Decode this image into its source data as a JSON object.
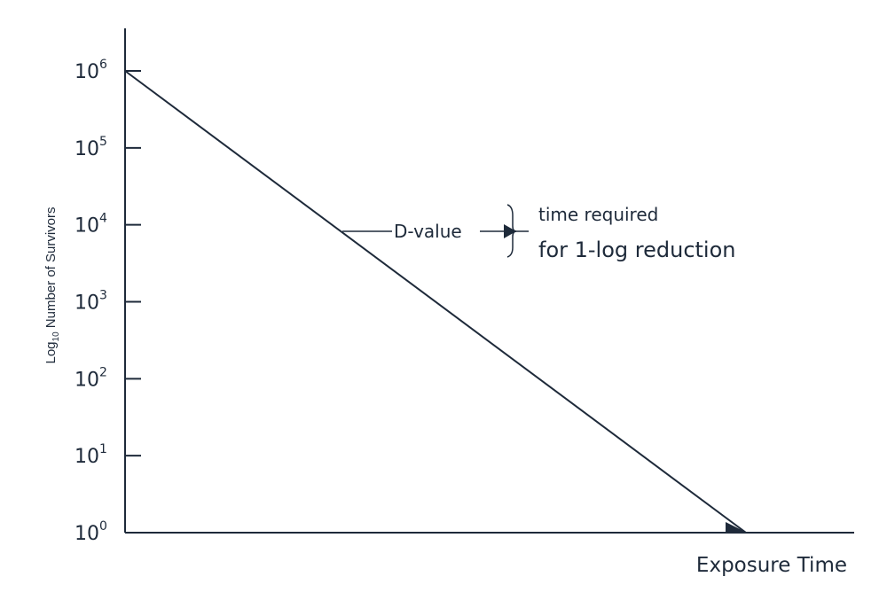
{
  "chart_data": {
    "type": "line",
    "title": "",
    "xlabel": "Exposure Time",
    "ylabel": {
      "prefix": "Log",
      "subscript": "10",
      "suffix": " Number of Survivors"
    },
    "yscale": "log",
    "y_ticks": [
      {
        "base": "10",
        "exp": "6",
        "value": 1000000
      },
      {
        "base": "10",
        "exp": "5",
        "value": 100000
      },
      {
        "base": "10",
        "exp": "4",
        "value": 10000
      },
      {
        "base": "10",
        "exp": "3",
        "value": 1000
      },
      {
        "base": "10",
        "exp": "2",
        "value": 100
      },
      {
        "base": "10",
        "exp": "1",
        "value": 10
      },
      {
        "base": "10",
        "exp": "0",
        "value": 1
      }
    ],
    "series": [
      {
        "x": [
          0,
          1
        ],
        "y": [
          1000000,
          1
        ]
      }
    ],
    "annotations": {
      "d_value_label": "D-value",
      "description_line1": "time required",
      "description_line2": "for 1-log reduction"
    },
    "grid": false,
    "legend": "none"
  }
}
